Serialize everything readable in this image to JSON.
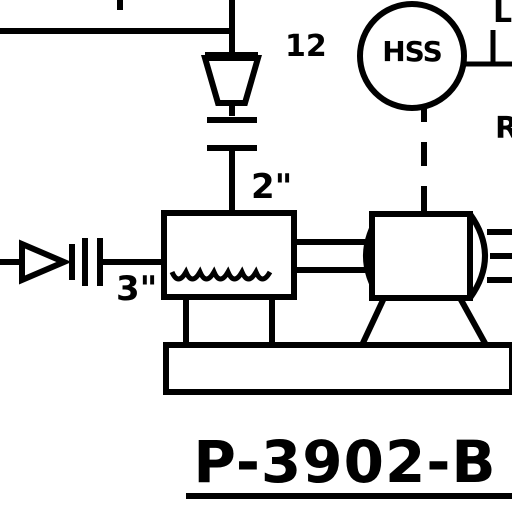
{
  "diagram": {
    "line_number": "12",
    "instrument_label": "HSS",
    "edge_label_top": "L",
    "edge_label_right": "R",
    "discharge_size": "2\"",
    "suction_size": "3\"",
    "equipment_tag": "P-3902-B"
  },
  "colors": {
    "ink": "#000000",
    "paper": "#ffffff"
  }
}
